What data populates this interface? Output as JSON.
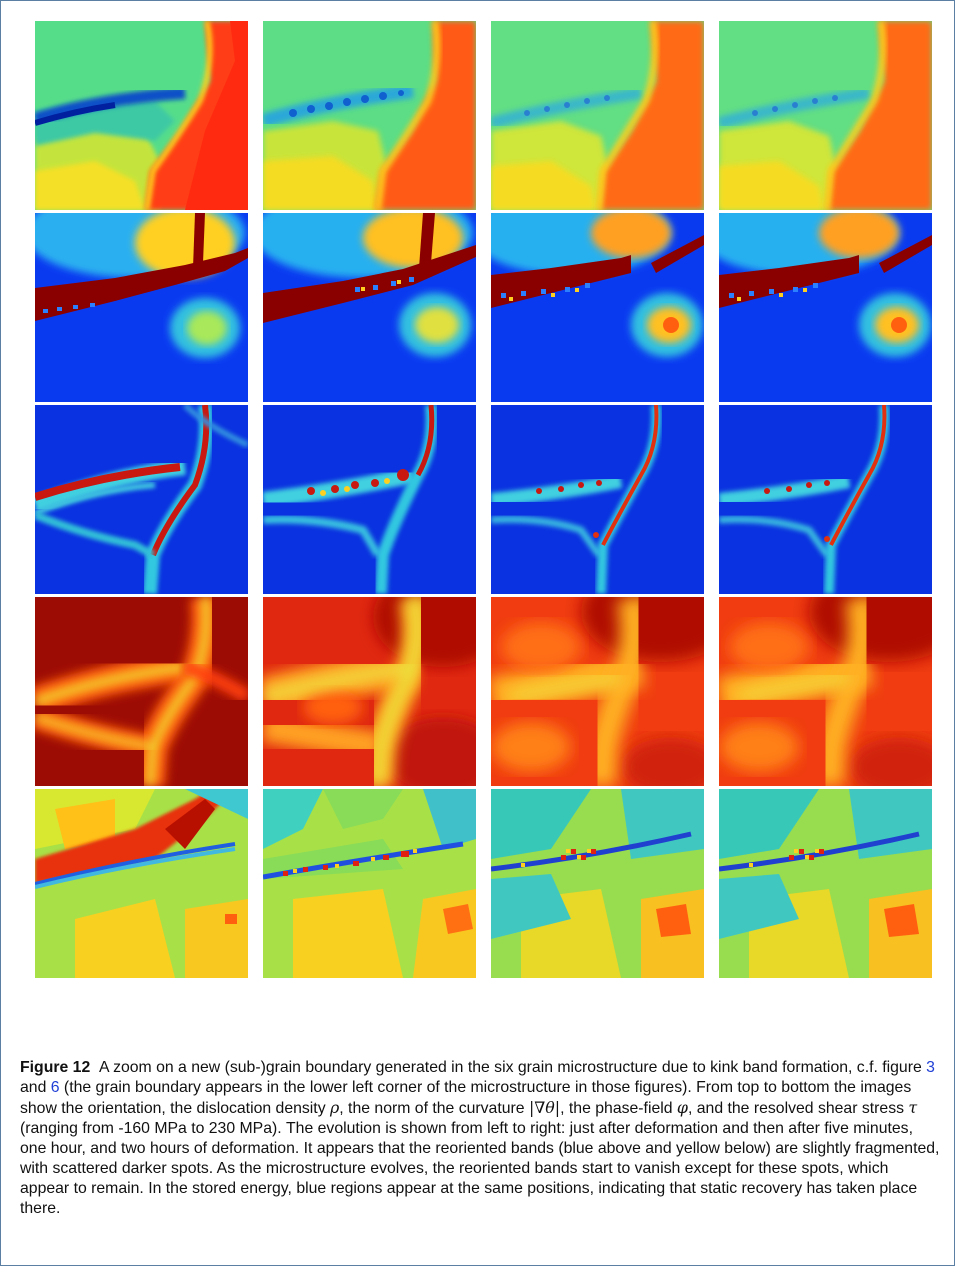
{
  "figure": {
    "rows": [
      "orientation",
      "dislocation-density",
      "curvature-norm",
      "phase-field",
      "shear-stress"
    ],
    "columns": [
      "just-after-deformation",
      "five-minutes",
      "one-hour",
      "two-hours"
    ]
  },
  "caption": {
    "label": "Figure 12",
    "p1": "A zoom on a new (sub-)grain boundary generated in the six grain microstructure due to kink band formation, c.f. figure ",
    "ref1": "3",
    "p2": " and ",
    "ref2": "6",
    "p3": " (the grain boundary appears in the lower left corner of the microstructure in those figures). From top to bottom the images show the orientation, the dislocation density ",
    "sym_rho": "ρ",
    "p4": ", the norm of the curvature ",
    "sym_curv": "|∇θ|",
    "p5": ", the phase-field ",
    "sym_phi": "φ",
    "p6": ", and the resolved shear stress ",
    "sym_tau": "τ",
    "p7": " (ranging from -160 MPa to 230 MPa). The evolution is shown from left to right: just after deformation and then after five minutes, one hour, and two hours of deformation. It appears that the reoriented bands (blue above and yellow below) are slightly fragmented, with scattered darker spots. As the microstructure evolves, the reoriented bands start to vanish except for these spots, which appear to remain. In the stored energy, blue regions appear at the same positions, indicating that static recovery has taken place there."
  },
  "colors": {
    "link": "#1f3fd6",
    "frame": "#5b7fa3"
  }
}
